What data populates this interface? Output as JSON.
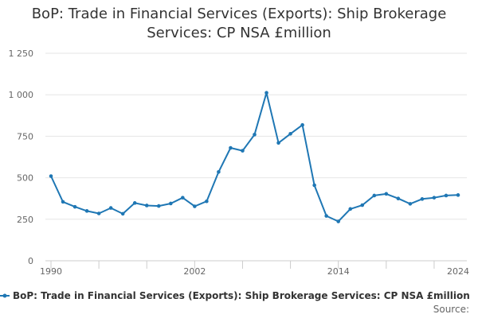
{
  "chart_data": {
    "type": "line",
    "title": "BoP: Trade in Financial Services (Exports): Ship Brokerage Services: CP NSA £million",
    "title_lines": [
      "BoP: Trade in Financial Services (Exports): Ship Brokerage",
      "Services: CP NSA £million"
    ],
    "xlabel": "",
    "ylabel": "",
    "xlim": [
      1990,
      2024
    ],
    "ylim": [
      0,
      1250
    ],
    "y_ticks": [
      0,
      250,
      500,
      750,
      1000,
      1250
    ],
    "y_tick_labels": [
      "0",
      "250",
      "500",
      "750",
      "1 000",
      "1 250"
    ],
    "x_ticks": [
      1990,
      2002,
      2014,
      2024
    ],
    "x_tick_labels": [
      "1990",
      "2002",
      "2014",
      "2024"
    ],
    "grid": "horizontal",
    "legend_position": "bottom",
    "series": [
      {
        "name": "BoP: Trade in Financial Services (Exports): Ship Brokerage Services: CP NSA £million",
        "color": "#1f77b4",
        "x": [
          1990,
          1991,
          1992,
          1993,
          1994,
          1995,
          1996,
          1997,
          1998,
          1999,
          2000,
          2001,
          2002,
          2003,
          2004,
          2005,
          2006,
          2007,
          2008,
          2009,
          2010,
          2011,
          2012,
          2013,
          2014,
          2015,
          2016,
          2017,
          2018,
          2019,
          2020,
          2021,
          2022,
          2023,
          2024
        ],
        "values": [
          510,
          355,
          325,
          300,
          285,
          318,
          283,
          348,
          333,
          330,
          345,
          380,
          328,
          358,
          535,
          680,
          663,
          760,
          1012,
          710,
          765,
          818,
          455,
          270,
          237,
          312,
          335,
          393,
          403,
          375,
          343,
          372,
          380,
          393,
          396
        ]
      }
    ]
  },
  "source_label": "Source:"
}
